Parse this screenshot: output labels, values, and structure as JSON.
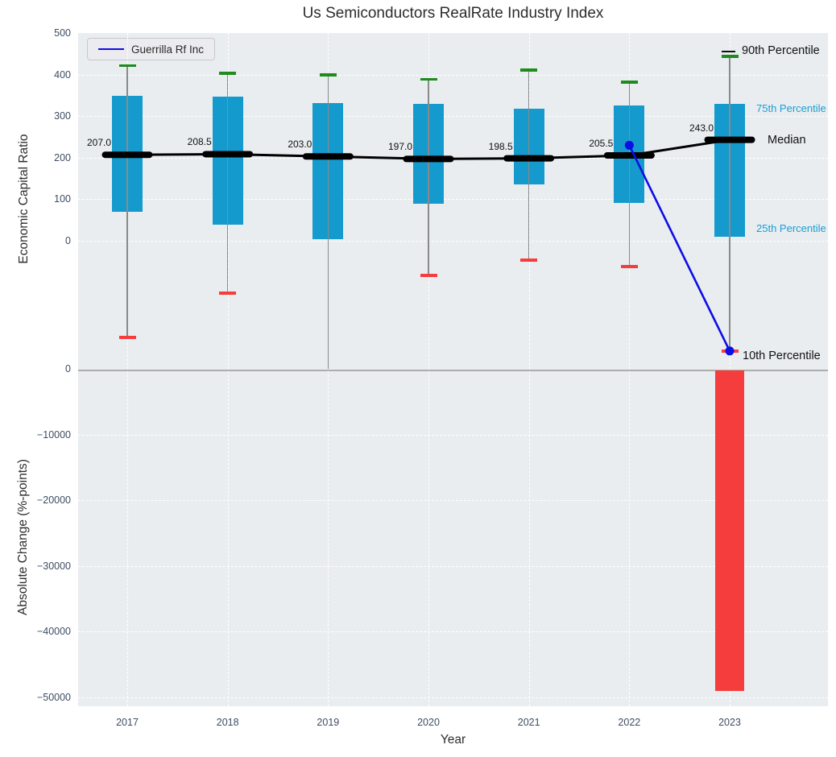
{
  "title": "Us Semiconductors RealRate Industry Index",
  "legend": {
    "label": "Guerrilla Rf Inc"
  },
  "axes": {
    "xlabel": "Year",
    "top_ylabel": "Economic Capital Ratio",
    "bottom_ylabel": "Absolute Change (%-points)",
    "top_ytick_labels": [
      "500",
      "400",
      "300",
      "200",
      "100",
      "0"
    ],
    "bottom_ytick_labels": [
      "0",
      "−10000",
      "−20000",
      "−30000",
      "−40000",
      "−50000"
    ],
    "xtick_labels": [
      "2017",
      "2018",
      "2019",
      "2020",
      "2021",
      "2022",
      "2023"
    ]
  },
  "percentile_labels": {
    "p90": "90th Percentile",
    "p75": "75th Percentile",
    "median": "Median",
    "p25": "25th Percentile",
    "p10": "10th Percentile"
  },
  "colors": {
    "box_fill": "#149acd",
    "percentile_label_cyan": "#189fd6",
    "green_cap": "#1d8c1d",
    "red_accent": "#f53d3d",
    "median_line": "#000000",
    "company_line": "#0d0de6",
    "whisker": "#8a8a8a",
    "zero_line": "#adadad",
    "plot_bg": "#e9edf0",
    "grid": "#ffffff",
    "tick_text": "#3e4c63",
    "label_text": "#111111"
  },
  "chart_data": [
    {
      "type": "boxplot",
      "title": "Us Semiconductors RealRate Industry Index",
      "xlabel": "Year",
      "ylabel": "Economic Capital Ratio",
      "categories": [
        2017,
        2018,
        2019,
        2020,
        2021,
        2022,
        2023
      ],
      "series": [
        {
          "name": "90th Percentile",
          "values": [
            421,
            403,
            399,
            389,
            411,
            382,
            444
          ]
        },
        {
          "name": "75th Percentile",
          "values": [
            348,
            347,
            332,
            330,
            318,
            326,
            329
          ]
        },
        {
          "name": "Median",
          "values": [
            207.0,
            208.5,
            203.0,
            197.0,
            198.5,
            205.5,
            243.0
          ]
        },
        {
          "name": "25th Percentile",
          "values": [
            70,
            39,
            4,
            89,
            135,
            91,
            10
          ]
        },
        {
          "name": "10th Percentile",
          "values": [
            -233,
            -125,
            -310,
            -84,
            -46,
            -62,
            -265
          ]
        }
      ],
      "median_labels": [
        "207.0",
        "208.5",
        "203.0",
        "197.0",
        "198.5",
        "205.5",
        "243.0"
      ],
      "company_series": {
        "name": "Guerrilla Rf Inc",
        "x": [
          2022,
          2023
        ],
        "values": [
          230,
          -265
        ]
      },
      "ylim": [
        -308,
        500
      ],
      "yticks": [
        500,
        400,
        300,
        200,
        100,
        0
      ],
      "grid": true,
      "legend_position": "upper left"
    },
    {
      "type": "bar",
      "ylabel": "Absolute Change (%-points)",
      "categories": [
        2017,
        2018,
        2019,
        2020,
        2021,
        2022,
        2023
      ],
      "values": [
        null,
        null,
        null,
        null,
        null,
        null,
        -49000
      ],
      "ylim": [
        -51350,
        0
      ],
      "yticks": [
        0,
        -10000,
        -20000,
        -30000,
        -40000,
        -50000
      ],
      "grid": true
    }
  ]
}
